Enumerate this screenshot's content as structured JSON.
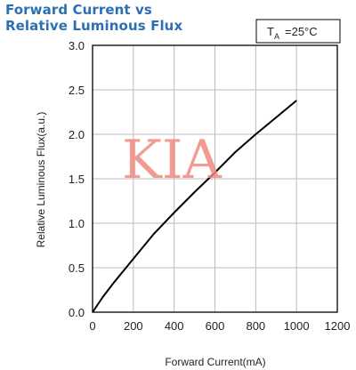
{
  "header": {
    "title_line1": "Forward Current vs",
    "title_line2": "Relative Luminous Flux"
  },
  "condition": {
    "t_main": "T",
    "t_sub": "A",
    "value": "=25°C"
  },
  "watermark": "KIA",
  "colors": {
    "title": "#2d6fb3",
    "curve": "#000000",
    "grid": "#bbbbbb",
    "watermark": "#f08a80"
  },
  "chart_data": {
    "type": "line",
    "title": "Forward Current vs Relative Luminous Flux",
    "xlabel": "Forward Current(mA)",
    "ylabel": "Relative Luminous Flux(a.u.)",
    "xlim": [
      0,
      1200
    ],
    "ylim": [
      0,
      3.0
    ],
    "x_ticks": [
      "0",
      "200",
      "400",
      "600",
      "800",
      "1000",
      "1200"
    ],
    "y_ticks": [
      "0.0",
      "0.5",
      "1.0",
      "1.5",
      "2.0",
      "2.5",
      "3.0"
    ],
    "grid": true,
    "series": [
      {
        "x": [
          0,
          50,
          100,
          200,
          300,
          400,
          500,
          600,
          700,
          800,
          900,
          1000
        ],
        "values": [
          0.0,
          0.17,
          0.32,
          0.6,
          0.88,
          1.12,
          1.35,
          1.57,
          1.8,
          2.0,
          2.19,
          2.38
        ]
      }
    ]
  }
}
